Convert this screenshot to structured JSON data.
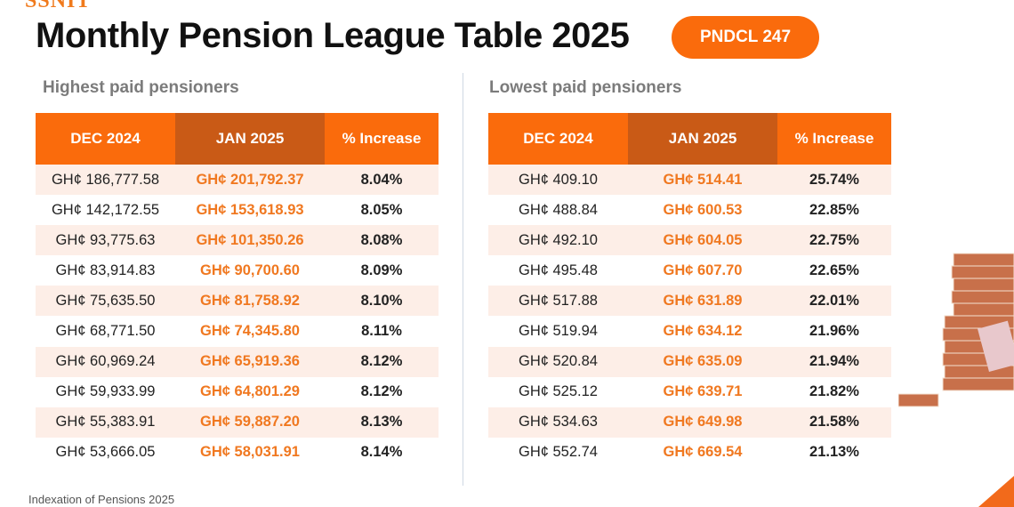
{
  "logo": "SSNIT",
  "title": "Monthly Pension League Table 2025",
  "badge": "PNDCL 247",
  "footer": "Indexation of Pensions 2025",
  "colors": {
    "accent": "#fa6b0c",
    "accent_dark": "#c95a16",
    "value_orange": "#f07820",
    "row_alt": "#fdeee7"
  },
  "headers": [
    "DEC 2024",
    "JAN 2025",
    "% Increase"
  ],
  "highest": {
    "title": "Highest paid pensioners",
    "rows": [
      [
        "GH¢ 186,777.58",
        "GH¢ 201,792.37",
        "8.04%"
      ],
      [
        "GH¢ 142,172.55",
        "GH¢ 153,618.93",
        "8.05%"
      ],
      [
        "GH¢ 93,775.63",
        "GH¢ 101,350.26",
        "8.08%"
      ],
      [
        "GH¢ 83,914.83",
        "GH¢ 90,700.60",
        "8.09%"
      ],
      [
        "GH¢ 75,635.50",
        "GH¢ 81,758.92",
        "8.10%"
      ],
      [
        "GH¢ 68,771.50",
        "GH¢ 74,345.80",
        "8.11%"
      ],
      [
        "GH¢ 60,969.24",
        "GH¢ 65,919.36",
        "8.12%"
      ],
      [
        "GH¢ 59,933.99",
        "GH¢ 64,801.29",
        "8.12%"
      ],
      [
        "GH¢ 55,383.91",
        "GH¢ 59,887.20",
        "8.13%"
      ],
      [
        "GH¢ 53,666.05",
        "GH¢ 58,031.91",
        "8.14%"
      ]
    ]
  },
  "lowest": {
    "title": "Lowest paid pensioners",
    "rows": [
      [
        "GH¢ 409.10",
        "GH¢ 514.41",
        "25.74%"
      ],
      [
        "GH¢ 488.84",
        "GH¢ 600.53",
        "22.85%"
      ],
      [
        "GH¢ 492.10",
        "GH¢ 604.05",
        "22.75%"
      ],
      [
        "GH¢ 495.48",
        "GH¢ 607.70",
        "22.65%"
      ],
      [
        "GH¢ 517.88",
        "GH¢ 631.89",
        "22.01%"
      ],
      [
        "GH¢ 519.94",
        "GH¢ 634.12",
        "21.96%"
      ],
      [
        "GH¢ 520.84",
        "GH¢ 635.09",
        "21.94%"
      ],
      [
        "GH¢ 525.12",
        "GH¢ 639.71",
        "21.82%"
      ],
      [
        "GH¢ 534.63",
        "GH¢ 649.98",
        "21.58%"
      ],
      [
        "GH¢ 552.74",
        "GH¢ 669.54",
        "21.13%"
      ]
    ]
  }
}
